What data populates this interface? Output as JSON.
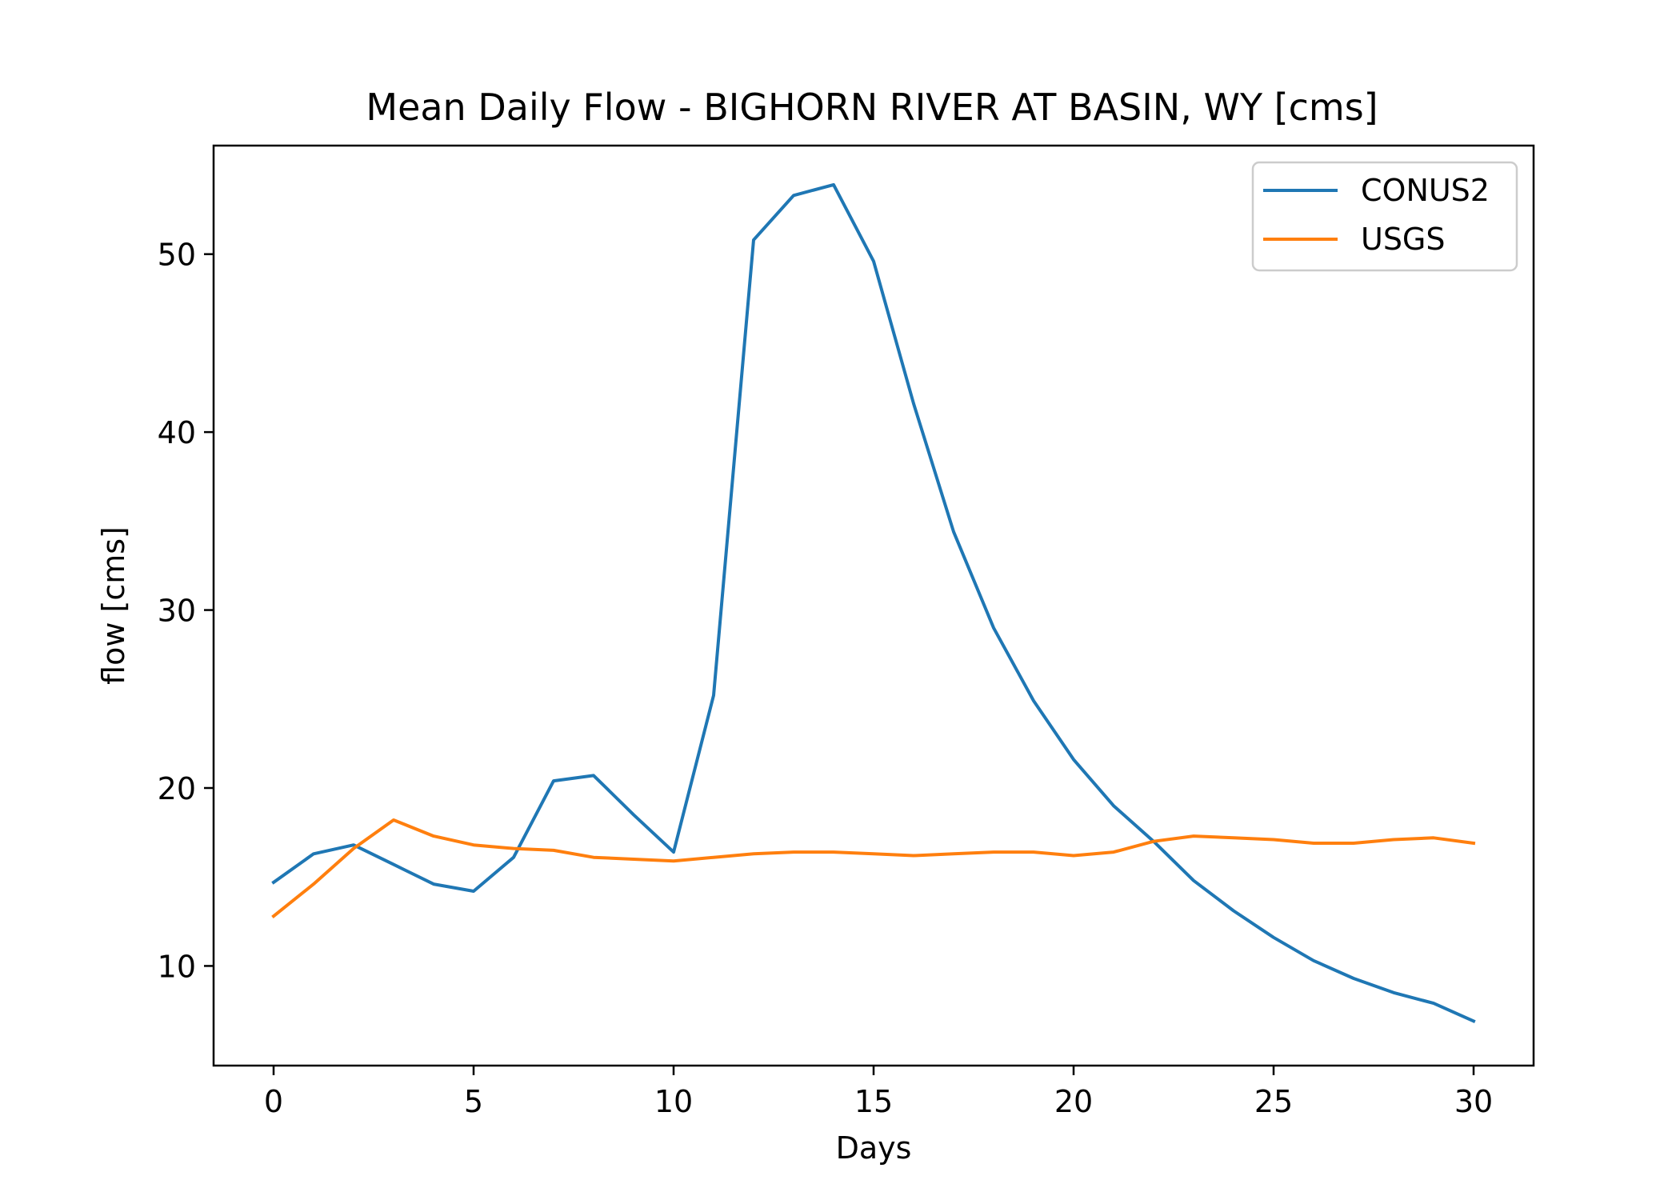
{
  "chart_data": {
    "type": "line",
    "title": "Mean Daily Flow - BIGHORN RIVER AT BASIN, WY [cms]",
    "xlabel": "Days",
    "ylabel": "flow [cms]",
    "xlim": [
      -1.5,
      31.5
    ],
    "ylim": [
      4.4,
      56.1
    ],
    "xticks": [
      0,
      5,
      10,
      15,
      20,
      25,
      30
    ],
    "yticks": [
      10,
      20,
      30,
      40,
      50
    ],
    "grid": false,
    "legend_position": "upper-right",
    "x": [
      0,
      1,
      2,
      3,
      4,
      5,
      6,
      7,
      8,
      9,
      10,
      11,
      12,
      13,
      14,
      15,
      16,
      17,
      18,
      19,
      20,
      21,
      22,
      23,
      24,
      25,
      26,
      27,
      28,
      29,
      30
    ],
    "series": [
      {
        "name": "CONUS2",
        "color": "#1f77b4",
        "values": [
          14.7,
          16.3,
          16.8,
          15.7,
          14.6,
          14.2,
          16.1,
          20.4,
          20.7,
          18.5,
          16.4,
          25.2,
          50.8,
          53.3,
          53.9,
          49.6,
          41.6,
          34.4,
          29.0,
          24.9,
          21.6,
          19.0,
          17.0,
          14.8,
          13.1,
          11.6,
          10.3,
          9.3,
          8.5,
          7.9,
          6.9
        ]
      },
      {
        "name": "USGS",
        "color": "#ff7f0e",
        "values": [
          12.8,
          14.6,
          16.6,
          18.2,
          17.3,
          16.8,
          16.6,
          16.5,
          16.1,
          16.0,
          15.9,
          16.1,
          16.3,
          16.4,
          16.4,
          16.3,
          16.2,
          16.3,
          16.4,
          16.4,
          16.2,
          16.4,
          17.0,
          17.3,
          17.2,
          17.1,
          16.9,
          16.9,
          17.1,
          17.2,
          16.9
        ]
      }
    ]
  }
}
